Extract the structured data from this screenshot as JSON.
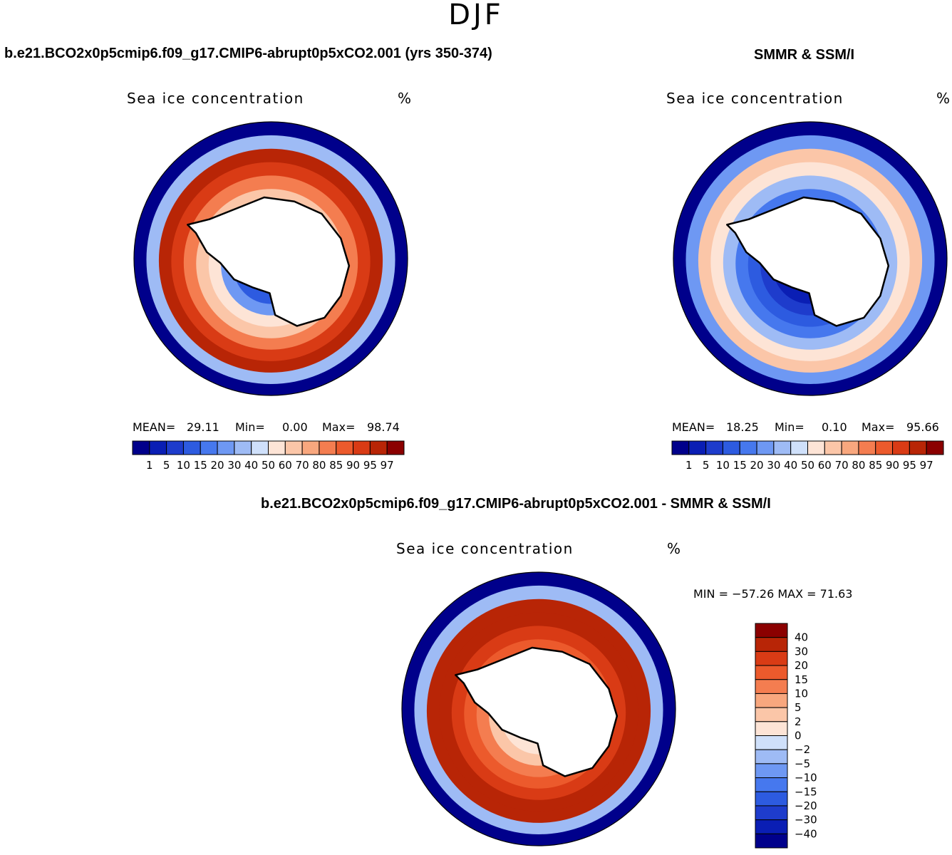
{
  "page": {
    "season": "DJF"
  },
  "colors": {
    "seq": [
      "#00008b",
      "#0a1eb4",
      "#1e3ccc",
      "#2d5be0",
      "#4678ee",
      "#6e98f3",
      "#9ebbf5",
      "#cfe0fa",
      "#fde4d6",
      "#fbc6a8",
      "#f8a77e",
      "#f47d50",
      "#ec5a2c",
      "#d93b15",
      "#b82506",
      "#8b0000"
    ],
    "div": [
      "#00008b",
      "#0a1eb4",
      "#1e3ccc",
      "#2d5be0",
      "#4678ee",
      "#6e98f3",
      "#9ebbf5",
      "#cfe0fa",
      "#fde4d6",
      "#fbc6a8",
      "#f8a77e",
      "#f47d50",
      "#ec5a2c",
      "#d93b15",
      "#b82506",
      "#8b0000"
    ]
  },
  "chart_data": [
    {
      "type": "heatmap",
      "projection": "south-polar-stereographic",
      "header": "b.e21.BCO2x0p5cmip6.f09_g17.CMIP6-abrupt0p5xCO2.001 (yrs 350-374)",
      "title": "Sea ice concentration",
      "units": "%",
      "stats": {
        "mean_label": "MEAN=",
        "mean": "29.11",
        "min_label": "Min=",
        "min": "0.00",
        "max_label": "Max=",
        "max": "98.74"
      },
      "levels": [
        "1",
        "5",
        "10",
        "15",
        "20",
        "30",
        "40",
        "50",
        "60",
        "70",
        "80",
        "85",
        "90",
        "95",
        "97"
      ],
      "ring_profile": [
        0.03,
        0.4,
        0.94,
        0.84,
        0.74,
        0.62,
        0.5,
        0.36,
        0.22,
        0.12
      ]
    },
    {
      "type": "heatmap",
      "projection": "south-polar-stereographic",
      "header": "SMMR & SSM/I",
      "title": "Sea ice concentration",
      "units": "%",
      "stats": {
        "mean_label": "MEAN=",
        "mean": "18.25",
        "min_label": "Min=",
        "min": "0.10",
        "max_label": "Max=",
        "max": "95.66"
      },
      "levels": [
        "1",
        "5",
        "10",
        "15",
        "20",
        "30",
        "40",
        "50",
        "60",
        "70",
        "80",
        "85",
        "90",
        "95",
        "97"
      ],
      "ring_profile": [
        0.03,
        0.3,
        0.62,
        0.5,
        0.38,
        0.26,
        0.18,
        0.1,
        0.05,
        0.02
      ]
    },
    {
      "type": "heatmap",
      "projection": "south-polar-stereographic",
      "header": "b.e21.BCO2x0p5cmip6.f09_g17.CMIP6-abrupt0p5xCO2.001 - SMMR & SSM/I",
      "title": "Sea ice concentration",
      "units": "%",
      "stats_text": "MIN = −57.26 MAX =  71.63",
      "stats": {
        "min": -57.26,
        "max": 71.63
      },
      "levels": [
        "40",
        "30",
        "20",
        "15",
        "10",
        "5",
        "2",
        "0",
        "−2",
        "−5",
        "−10",
        "−15",
        "−20",
        "−30",
        "−40"
      ],
      "ring_profile": [
        0.03,
        0.4,
        0.96,
        0.93,
        0.88,
        0.82,
        0.74,
        0.62,
        0.52,
        0.48
      ]
    }
  ]
}
